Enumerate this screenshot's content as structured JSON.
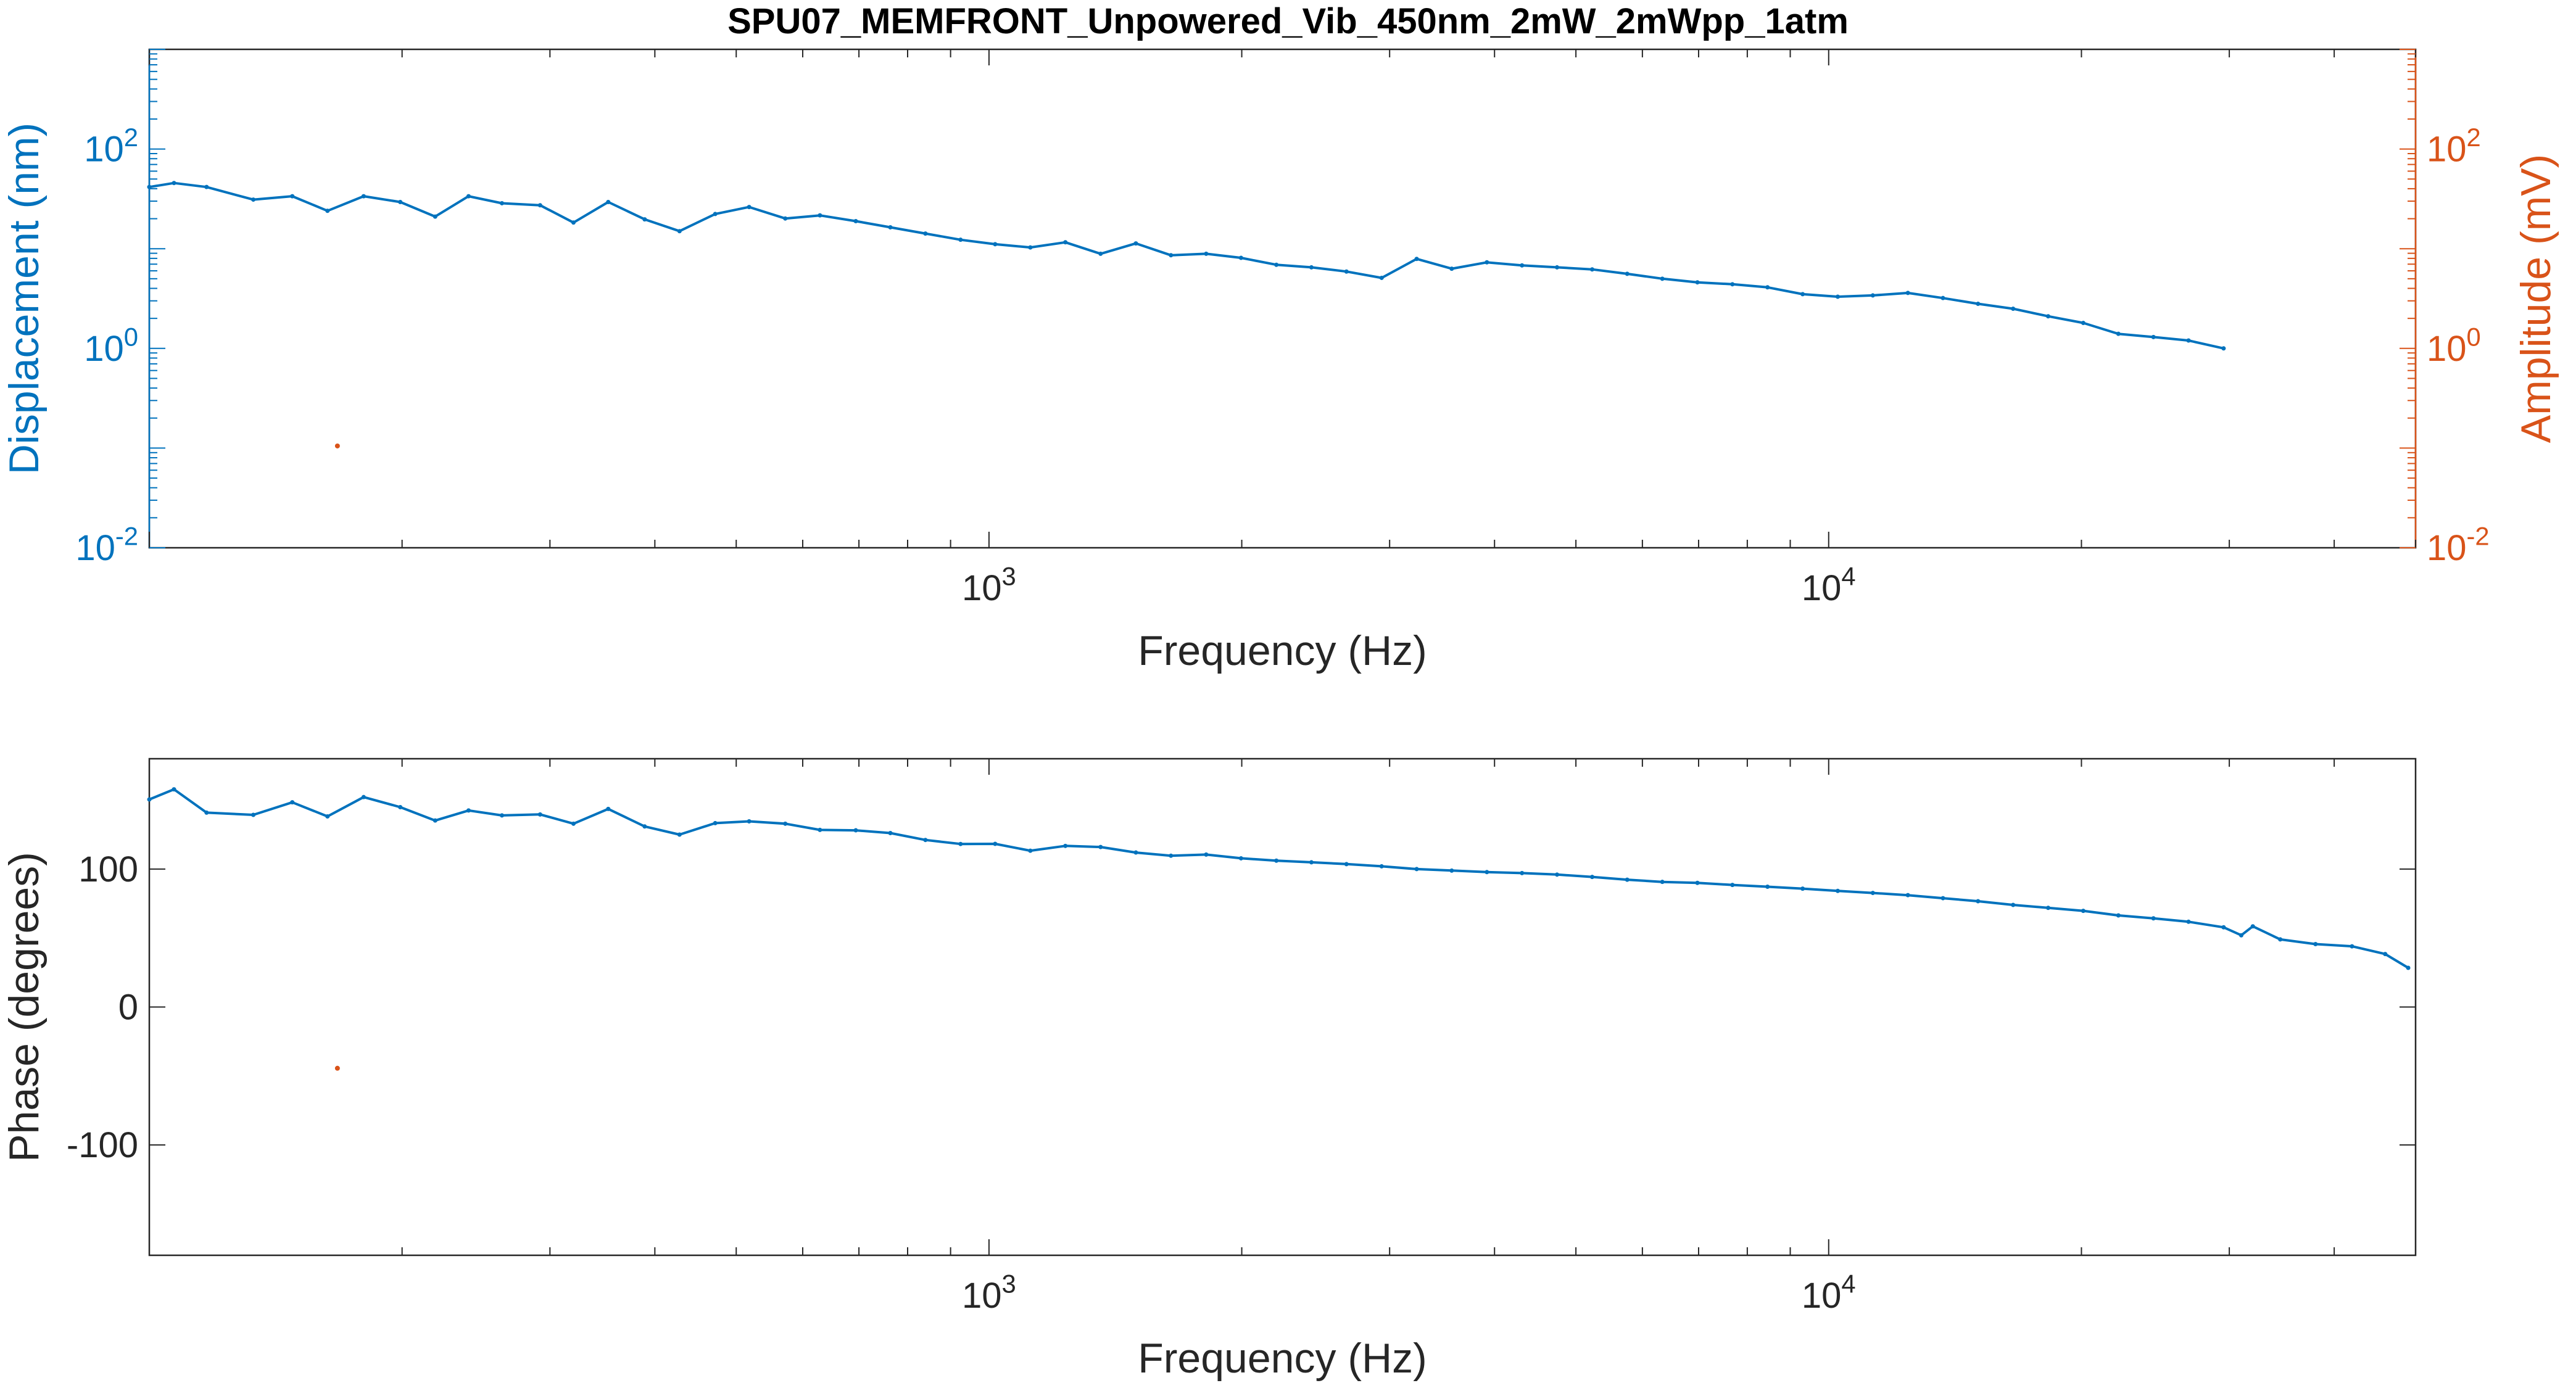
{
  "title": "SPU07_MEMFRONT_Unpowered_Vib_450nm_2mW_2mWpp_1atm",
  "colors": {
    "series_primary": "#0072BD",
    "series_secondary": "#D95319",
    "axes": "#262626",
    "grid": "#f0f0f0"
  },
  "chart_data": [
    {
      "type": "line",
      "xscale": "log",
      "yscale": "log",
      "xlim": [
        100,
        50000
      ],
      "ylim": [
        0.01,
        1000
      ],
      "y2lim": [
        0.01,
        1000
      ],
      "xlabel": "Frequency (Hz)",
      "ylabel": "Displacement (nm)",
      "y2label": "Amplitude (mV)",
      "x_ticks": [
        {
          "v": 1000,
          "base": "10",
          "exp": "3"
        },
        {
          "v": 10000,
          "base": "10",
          "exp": "4"
        }
      ],
      "y_ticks": [
        {
          "v": 0.01,
          "base": "10",
          "exp": "-2"
        },
        {
          "v": 1,
          "base": "10",
          "exp": "0"
        },
        {
          "v": 100,
          "base": "10",
          "exp": "2"
        }
      ],
      "y2_ticks": [
        {
          "v": 0.01,
          "base": "10",
          "exp": "-2"
        },
        {
          "v": 1,
          "base": "10",
          "exp": "0"
        },
        {
          "v": 100,
          "base": "10",
          "exp": "2"
        }
      ],
      "series": [
        {
          "axis": "left",
          "color": "#0072BD",
          "points": [
            [
              100,
              41.6
            ],
            [
              107,
              45.6
            ],
            [
              117,
              41.6
            ],
            [
              133,
              31.1
            ],
            [
              148,
              33.6
            ],
            [
              163,
              24.0
            ],
            [
              180,
              33.6
            ],
            [
              199,
              29.4
            ],
            [
              219,
              21.0
            ],
            [
              240,
              33.6
            ],
            [
              263,
              28.6
            ],
            [
              292,
              27.3
            ],
            [
              320,
              18.3
            ],
            [
              352,
              29.4
            ],
            [
              389,
              19.7
            ],
            [
              428,
              15.0
            ],
            [
              472,
              22.3
            ],
            [
              518,
              26.2
            ],
            [
              572,
              20.1
            ],
            [
              629,
              21.6
            ],
            [
              694,
              18.9
            ],
            [
              763,
              16.4
            ],
            [
              840,
              14.2
            ],
            [
              925,
              12.3
            ],
            [
              1017,
              11.1
            ],
            [
              1120,
              10.3
            ],
            [
              1233,
              11.6
            ],
            [
              1358,
              8.9
            ],
            [
              1496,
              11.3
            ],
            [
              1647,
              8.6
            ],
            [
              1814,
              8.9
            ],
            [
              1996,
              8.1
            ],
            [
              2199,
              6.9
            ],
            [
              2421,
              6.5
            ],
            [
              2665,
              5.9
            ],
            [
              2935,
              5.1
            ],
            [
              3231,
              7.9
            ],
            [
              3557,
              6.3
            ],
            [
              3917,
              7.3
            ],
            [
              4313,
              6.8
            ],
            [
              4748,
              6.5
            ],
            [
              5228,
              6.2
            ],
            [
              5755,
              5.6
            ],
            [
              6337,
              5.0
            ],
            [
              6977,
              4.6
            ],
            [
              7680,
              4.4
            ],
            [
              8456,
              4.1
            ],
            [
              9311,
              3.5
            ],
            [
              10252,
              3.3
            ],
            [
              11287,
              3.4
            ],
            [
              12426,
              3.6
            ],
            [
              13681,
              3.2
            ],
            [
              15062,
              2.8
            ],
            [
              16583,
              2.5
            ],
            [
              18256,
              2.1
            ],
            [
              20101,
              1.8
            ],
            [
              22132,
              1.4
            ],
            [
              24366,
              1.3
            ],
            [
              26827,
              1.2
            ],
            [
              29536,
              1.0
            ]
          ]
        },
        {
          "axis": "right",
          "color": "#D95319",
          "marker_only": true,
          "points": [
            [
              167.5,
              0.105
            ]
          ]
        }
      ]
    },
    {
      "type": "line",
      "xscale": "log",
      "yscale": "linear",
      "xlim": [
        100,
        50000
      ],
      "ylim": [
        -180,
        180
      ],
      "xlabel": "Frequency (Hz)",
      "ylabel": "Phase (degrees)",
      "x_ticks": [
        {
          "v": 1000,
          "base": "10",
          "exp": "3"
        },
        {
          "v": 10000,
          "base": "10",
          "exp": "4"
        }
      ],
      "y_ticks": [
        {
          "v": -100,
          "label": "-100"
        },
        {
          "v": 0,
          "label": "0"
        },
        {
          "v": 100,
          "label": "100"
        }
      ],
      "series": [
        {
          "axis": "left",
          "color": "#0072BD",
          "points": [
            [
              100,
              150.5
            ],
            [
              107,
              157.8
            ],
            [
              117,
              140.9
            ],
            [
              133,
              139.3
            ],
            [
              148,
              148.4
            ],
            [
              163,
              138.2
            ],
            [
              180,
              152.2
            ],
            [
              199,
              144.9
            ],
            [
              219,
              135.2
            ],
            [
              240,
              142.5
            ],
            [
              263,
              138.9
            ],
            [
              292,
              139.6
            ],
            [
              320,
              132.9
            ],
            [
              352,
              143.6
            ],
            [
              389,
              130.9
            ],
            [
              428,
              125.0
            ],
            [
              472,
              133.3
            ],
            [
              518,
              134.6
            ],
            [
              572,
              132.9
            ],
            [
              629,
              128.4
            ],
            [
              694,
              128.1
            ],
            [
              763,
              126.1
            ],
            [
              840,
              121.1
            ],
            [
              925,
              118.2
            ],
            [
              1017,
              118.3
            ],
            [
              1120,
              113.3
            ],
            [
              1233,
              116.8
            ],
            [
              1358,
              116.0
            ],
            [
              1496,
              112.0
            ],
            [
              1647,
              109.7
            ],
            [
              1814,
              110.5
            ],
            [
              1996,
              107.8
            ],
            [
              2199,
              106.1
            ],
            [
              2421,
              104.9
            ],
            [
              2665,
              103.6
            ],
            [
              2935,
              102.0
            ],
            [
              3231,
              100.0
            ],
            [
              3557,
              98.9
            ],
            [
              3917,
              97.8
            ],
            [
              4313,
              97.1
            ],
            [
              4748,
              96.0
            ],
            [
              5228,
              94.3
            ],
            [
              5755,
              92.3
            ],
            [
              6337,
              90.7
            ],
            [
              6977,
              90.0
            ],
            [
              7680,
              88.5
            ],
            [
              8456,
              87.2
            ],
            [
              9311,
              85.8
            ],
            [
              10252,
              84.2
            ],
            [
              11287,
              82.7
            ],
            [
              12426,
              81.1
            ],
            [
              13681,
              78.9
            ],
            [
              15062,
              76.7
            ],
            [
              16583,
              74.0
            ],
            [
              18256,
              71.9
            ],
            [
              20101,
              69.7
            ],
            [
              22132,
              66.4
            ],
            [
              24366,
              64.3
            ],
            [
              26827,
              61.8
            ],
            [
              29536,
              57.8
            ],
            [
              31000,
              52.0
            ],
            [
              32000,
              58.5
            ],
            [
              34500,
              49.0
            ],
            [
              38000,
              45.6
            ],
            [
              42000,
              44.0
            ],
            [
              46000,
              38.4
            ],
            [
              49000,
              28.4
            ]
          ]
        },
        {
          "axis": "left",
          "color": "#D95319",
          "marker_only": true,
          "points": [
            [
              167.5,
              -44.4
            ]
          ]
        }
      ]
    }
  ]
}
